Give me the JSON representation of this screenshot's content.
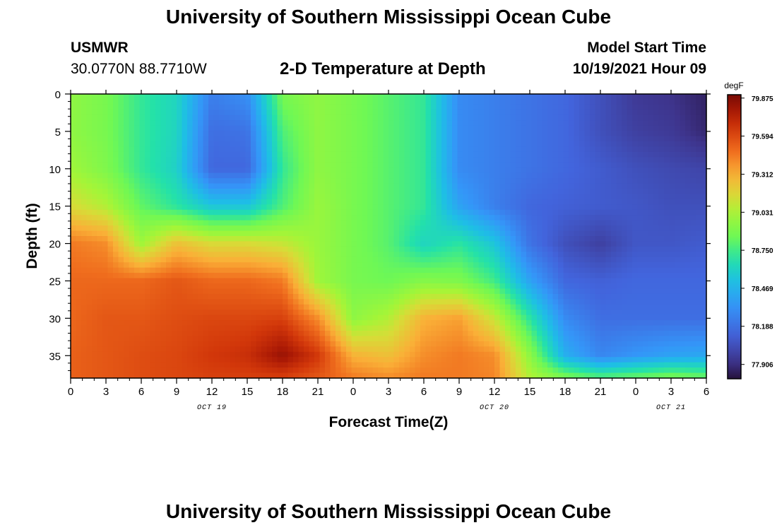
{
  "header": {
    "title": "University of Southern Mississippi Ocean Cube",
    "station": "USMWR",
    "coordinates": "30.0770N  88.7710W",
    "subtitle": "2-D Temperature at Depth",
    "model_start_label": "Model Start Time",
    "model_start_value": "10/19/2021 Hour 09"
  },
  "footer": {
    "title": "University of Southern Mississippi Ocean Cube"
  },
  "chart_data": {
    "type": "heatmap",
    "title": "2-D Temperature at Depth",
    "xlabel": "Forecast Time(Z)",
    "ylabel": "Depth (ft)",
    "colorbar_unit": "degF",
    "x_hours_since_start": [
      0,
      3,
      6,
      9,
      12,
      15,
      18,
      21,
      24,
      27,
      30,
      33,
      36,
      39,
      42,
      45,
      48,
      51,
      54
    ],
    "x_tick_labels": [
      "0",
      "3",
      "6",
      "9",
      "12",
      "15",
      "18",
      "21",
      "0",
      "3",
      "6",
      "9",
      "12",
      "15",
      "18",
      "21",
      "0",
      "3",
      "6"
    ],
    "date_labels": [
      {
        "text": "OCT 19",
        "x_hour": 12
      },
      {
        "text": "OCT 20",
        "x_hour": 36
      },
      {
        "text": "OCT 21",
        "x_hour": 51
      }
    ],
    "y_depth_ft": [
      0,
      5,
      10,
      15,
      20,
      25,
      30,
      35,
      38
    ],
    "y_ticks": [
      0,
      5,
      10,
      15,
      20,
      25,
      30,
      35
    ],
    "ylim": [
      0,
      38
    ],
    "xlim": [
      0,
      54
    ],
    "color_scale": {
      "min": 77.8,
      "max": 79.9,
      "tick_values": [
        77.906,
        78.188,
        78.469,
        78.75,
        79.031,
        79.312,
        79.594,
        79.875
      ],
      "tick_labels": [
        "77.906",
        "78.188",
        "78.469",
        "78.750",
        "79.031",
        "79.312",
        "79.594",
        "79.875"
      ]
    },
    "values_degF": [
      [
        78.95,
        78.88,
        78.72,
        78.62,
        78.25,
        78.32,
        78.88,
        78.95,
        78.88,
        78.8,
        78.72,
        78.3,
        78.25,
        78.2,
        78.15,
        78.05,
        77.95,
        77.92,
        77.86
      ],
      [
        78.95,
        78.88,
        78.72,
        78.62,
        78.18,
        78.2,
        78.78,
        78.95,
        78.88,
        78.8,
        78.72,
        78.3,
        78.25,
        78.2,
        78.15,
        78.05,
        77.98,
        77.95,
        77.88
      ],
      [
        79.0,
        78.9,
        78.72,
        78.6,
        78.15,
        78.15,
        78.72,
        78.95,
        78.88,
        78.8,
        78.72,
        78.3,
        78.25,
        78.2,
        78.15,
        78.1,
        78.05,
        78.02,
        78.0
      ],
      [
        79.15,
        79.05,
        78.82,
        78.7,
        78.55,
        78.55,
        78.78,
        78.98,
        78.88,
        78.8,
        78.72,
        78.4,
        78.25,
        78.15,
        78.12,
        78.1,
        78.08,
        78.05,
        78.05
      ],
      [
        79.45,
        79.4,
        79.0,
        79.25,
        79.15,
        79.15,
        79.1,
        78.98,
        78.88,
        78.8,
        78.62,
        78.7,
        78.55,
        78.2,
        78.05,
        77.98,
        78.08,
        78.08,
        78.1
      ],
      [
        79.5,
        79.5,
        79.5,
        79.55,
        79.5,
        79.5,
        79.45,
        79.0,
        78.88,
        78.85,
        78.92,
        78.9,
        78.75,
        78.4,
        78.15,
        78.12,
        78.15,
        78.15,
        78.15
      ],
      [
        79.5,
        79.55,
        79.55,
        79.58,
        79.6,
        79.6,
        79.62,
        79.4,
        78.95,
        79.05,
        79.3,
        79.35,
        79.1,
        78.7,
        78.3,
        78.18,
        78.18,
        78.18,
        78.18
      ],
      [
        79.52,
        79.55,
        79.58,
        79.6,
        79.65,
        79.68,
        79.82,
        79.65,
        79.3,
        79.25,
        79.4,
        79.45,
        79.4,
        78.95,
        78.45,
        78.28,
        78.35,
        78.4,
        78.42
      ],
      [
        79.52,
        79.55,
        79.58,
        79.6,
        79.62,
        79.62,
        79.62,
        79.55,
        79.45,
        79.4,
        79.45,
        79.45,
        79.42,
        79.05,
        78.9,
        78.8,
        78.85,
        78.9,
        78.85
      ]
    ]
  }
}
